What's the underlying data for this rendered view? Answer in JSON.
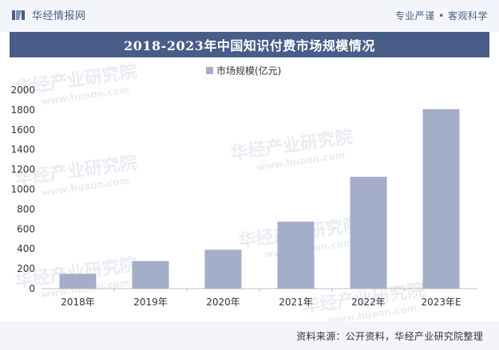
{
  "header": {
    "brand": "华经情报网",
    "slogan": "专业严谨 • 客观科学"
  },
  "source": "资料来源：公开资料，华经产业研究院整理",
  "watermark": {
    "cn": "华经产业研究院",
    "en": "www.huaon.com"
  },
  "colors": {
    "bar": "#a4aec8",
    "title_bg": "#485d87",
    "top_bg": "#f3f5fa"
  },
  "chart_data": {
    "type": "bar",
    "title": "2018-2023年中国知识付费市场规模情况",
    "categories": [
      "2018年",
      "2019年",
      "2020年",
      "2021年",
      "2022年",
      "2023年E"
    ],
    "series": [
      {
        "name": "市场规模(亿元)",
        "values": [
          149,
          278,
          392,
          675,
          1127,
          1808
        ]
      }
    ],
    "ylim": [
      0,
      2000
    ],
    "yticks": [
      0,
      200,
      400,
      600,
      800,
      1000,
      1200,
      1400,
      1600,
      1800,
      2000
    ],
    "grid": false,
    "legend": "top-center"
  }
}
